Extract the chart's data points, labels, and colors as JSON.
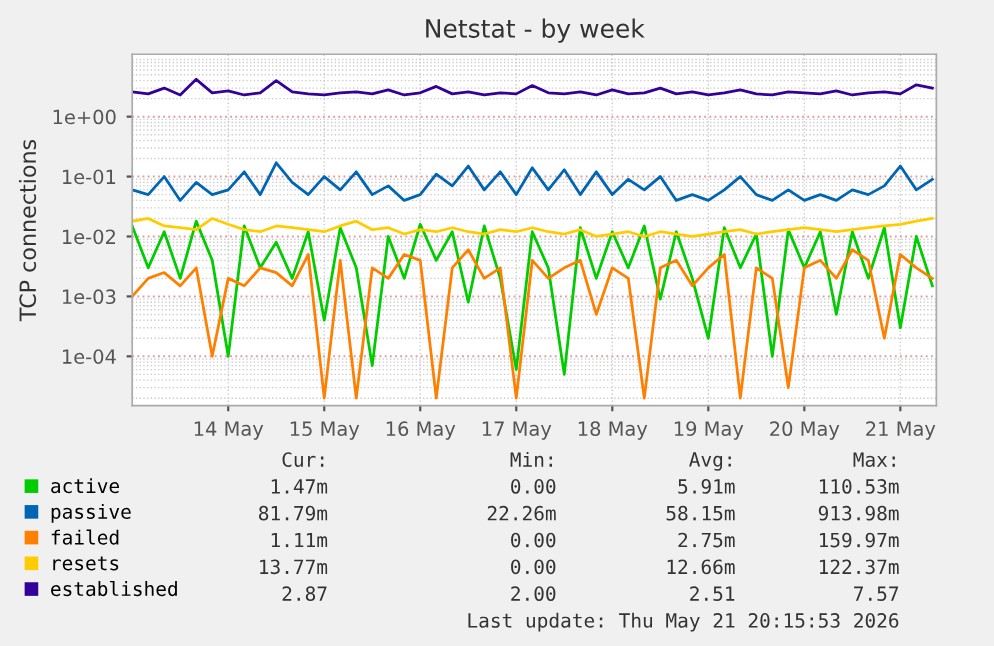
{
  "chart_data": {
    "type": "line",
    "title": "Netstat - by week",
    "ylabel": "TCP connections",
    "log": "y",
    "grid": true,
    "legend": "bottom",
    "marker": "none",
    "line_style": "solid",
    "x": [
      "2026-05-13T12:00",
      "2026-05-13T16:00",
      "2026-05-13T20:00",
      "2026-05-14T00:00",
      "2026-05-14T04:00",
      "2026-05-14T08:00",
      "2026-05-14T12:00",
      "2026-05-14T16:00",
      "2026-05-14T20:00",
      "2026-05-15T00:00",
      "2026-05-15T04:00",
      "2026-05-15T08:00",
      "2026-05-15T12:00",
      "2026-05-15T16:00",
      "2026-05-15T20:00",
      "2026-05-16T00:00",
      "2026-05-16T04:00",
      "2026-05-16T08:00",
      "2026-05-16T12:00",
      "2026-05-16T16:00",
      "2026-05-16T20:00",
      "2026-05-17T00:00",
      "2026-05-17T04:00",
      "2026-05-17T08:00",
      "2026-05-17T12:00",
      "2026-05-17T16:00",
      "2026-05-17T20:00",
      "2026-05-18T00:00",
      "2026-05-18T04:00",
      "2026-05-18T08:00",
      "2026-05-18T12:00",
      "2026-05-18T16:00",
      "2026-05-18T20:00",
      "2026-05-19T00:00",
      "2026-05-19T04:00",
      "2026-05-19T08:00",
      "2026-05-19T12:00",
      "2026-05-19T16:00",
      "2026-05-19T20:00",
      "2026-05-20T00:00",
      "2026-05-20T04:00",
      "2026-05-20T08:00",
      "2026-05-20T12:00",
      "2026-05-20T16:00",
      "2026-05-20T20:00",
      "2026-05-21T00:00",
      "2026-05-21T04:00",
      "2026-05-21T08:00",
      "2026-05-21T12:00",
      "2026-05-21T16:00",
      "2026-05-21T20:00"
    ],
    "series": [
      {
        "name": "active",
        "color": "#00cc00",
        "values": [
          0.015,
          0.003,
          0.012,
          0.002,
          0.018,
          0.004,
          0.0001,
          0.015,
          0.003,
          0.008,
          0.002,
          0.012,
          0.0004,
          0.014,
          0.003,
          7e-05,
          0.01,
          0.002,
          0.016,
          0.004,
          0.012,
          0.0008,
          0.015,
          0.002,
          6e-05,
          0.012,
          0.003,
          5e-05,
          0.014,
          0.002,
          0.012,
          0.003,
          0.015,
          0.0009,
          0.012,
          0.002,
          0.0002,
          0.014,
          0.003,
          0.011,
          0.0001,
          0.013,
          0.003,
          0.012,
          0.0005,
          0.012,
          0.002,
          0.014,
          0.0003,
          0.01,
          0.0015
        ]
      },
      {
        "name": "passive",
        "color": "#0066b3",
        "values": [
          0.06,
          0.05,
          0.1,
          0.04,
          0.08,
          0.05,
          0.06,
          0.12,
          0.05,
          0.17,
          0.08,
          0.05,
          0.1,
          0.06,
          0.12,
          0.05,
          0.07,
          0.04,
          0.05,
          0.11,
          0.07,
          0.15,
          0.06,
          0.12,
          0.05,
          0.14,
          0.06,
          0.13,
          0.05,
          0.12,
          0.05,
          0.09,
          0.06,
          0.1,
          0.04,
          0.05,
          0.04,
          0.06,
          0.1,
          0.05,
          0.04,
          0.06,
          0.04,
          0.05,
          0.04,
          0.06,
          0.05,
          0.07,
          0.15,
          0.06,
          0.09
        ]
      },
      {
        "name": "failed",
        "color": "#ff8000",
        "values": [
          0.001,
          0.002,
          0.0025,
          0.0015,
          0.003,
          0.0001,
          0.002,
          0.0015,
          0.003,
          0.0025,
          0.0015,
          0.005,
          2e-05,
          0.004,
          2e-05,
          0.003,
          0.002,
          0.005,
          0.004,
          2e-05,
          0.003,
          0.006,
          0.002,
          0.003,
          2e-05,
          0.004,
          0.002,
          0.003,
          0.004,
          0.0005,
          0.003,
          0.002,
          2e-05,
          0.003,
          0.004,
          0.0015,
          0.003,
          0.005,
          2e-05,
          0.003,
          0.002,
          3e-05,
          0.003,
          0.004,
          0.002,
          0.006,
          0.004,
          0.0002,
          0.005,
          0.003,
          0.002
        ]
      },
      {
        "name": "resets",
        "color": "#ffcc00",
        "values": [
          0.018,
          0.02,
          0.015,
          0.014,
          0.013,
          0.02,
          0.016,
          0.013,
          0.012,
          0.015,
          0.014,
          0.013,
          0.012,
          0.015,
          0.018,
          0.013,
          0.014,
          0.011,
          0.013,
          0.012,
          0.014,
          0.012,
          0.011,
          0.013,
          0.012,
          0.014,
          0.012,
          0.011,
          0.013,
          0.01,
          0.011,
          0.012,
          0.01,
          0.012,
          0.011,
          0.01,
          0.011,
          0.012,
          0.013,
          0.011,
          0.012,
          0.013,
          0.014,
          0.013,
          0.012,
          0.013,
          0.014,
          0.015,
          0.016,
          0.018,
          0.02
        ]
      },
      {
        "name": "established",
        "color": "#330099",
        "values": [
          2.6,
          2.4,
          3.0,
          2.3,
          4.2,
          2.5,
          2.7,
          2.3,
          2.5,
          4.0,
          2.6,
          2.4,
          2.3,
          2.5,
          2.6,
          2.4,
          2.8,
          2.3,
          2.5,
          3.2,
          2.4,
          2.6,
          2.3,
          2.5,
          2.4,
          3.3,
          2.5,
          2.4,
          2.6,
          2.3,
          2.8,
          2.4,
          2.5,
          3.0,
          2.4,
          2.6,
          2.3,
          2.5,
          2.8,
          2.4,
          2.3,
          2.6,
          2.5,
          2.4,
          2.7,
          2.3,
          2.5,
          2.6,
          2.4,
          3.4,
          3.0
        ]
      }
    ],
    "xlim": [
      "2026-05-13T12:00",
      "2026-05-21T21:00"
    ],
    "xticks": [
      {
        "value": "2026-05-14T12:00",
        "label": "14 May"
      },
      {
        "value": "2026-05-15T12:00",
        "label": "15 May"
      },
      {
        "value": "2026-05-16T12:00",
        "label": "16 May"
      },
      {
        "value": "2026-05-17T12:00",
        "label": "17 May"
      },
      {
        "value": "2026-05-18T12:00",
        "label": "18 May"
      },
      {
        "value": "2026-05-19T12:00",
        "label": "19 May"
      },
      {
        "value": "2026-05-20T12:00",
        "label": "20 May"
      },
      {
        "value": "2026-05-21T12:00",
        "label": "21 May"
      }
    ],
    "ylim": [
      1.5e-05,
      11
    ],
    "yticks": [
      {
        "value": 0.0001,
        "label": "1e-04"
      },
      {
        "value": 0.001,
        "label": "1e-03"
      },
      {
        "value": 0.01,
        "label": "1e-02"
      },
      {
        "value": 0.1,
        "label": "1e-01"
      },
      {
        "value": 1,
        "label": "1e+00"
      }
    ],
    "annotations": [
      "Cur:",
      "Min:",
      "Avg:",
      "Max:",
      "1.47m",
      "0.00",
      "5.91m",
      "110.53m",
      "81.79m",
      "22.26m",
      "58.15m",
      "913.98m",
      "1.11m",
      "0.00",
      "2.75m",
      "159.97m",
      "13.77m",
      "0.00",
      "12.66m",
      "122.37m",
      "2.87",
      "2.00",
      "2.51",
      "7.57",
      "Last update: Thu May 21 20:15:53 2026"
    ]
  }
}
